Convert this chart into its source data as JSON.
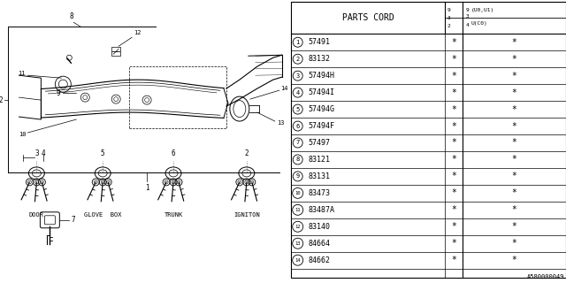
{
  "bg_color": "#ffffff",
  "parts": [
    {
      "num": "1",
      "code": "57491"
    },
    {
      "num": "2",
      "code": "83132"
    },
    {
      "num": "3",
      "code": "57494H"
    },
    {
      "num": "4",
      "code": "57494I"
    },
    {
      "num": "5",
      "code": "57494G"
    },
    {
      "num": "6",
      "code": "57494F"
    },
    {
      "num": "7",
      "code": "57497"
    },
    {
      "num": "8",
      "code": "83121"
    },
    {
      "num": "9",
      "code": "83131"
    },
    {
      "num": "10",
      "code": "83473"
    },
    {
      "num": "11",
      "code": "83487A"
    },
    {
      "num": "12",
      "code": "83140"
    },
    {
      "num": "13",
      "code": "84664"
    },
    {
      "num": "14",
      "code": "84662"
    }
  ],
  "col_header": "PARTS CORD",
  "footer": "A580000049",
  "labels": [
    "DOOR",
    "GLOVE  BOX",
    "TRUNK",
    "IGNITON"
  ]
}
